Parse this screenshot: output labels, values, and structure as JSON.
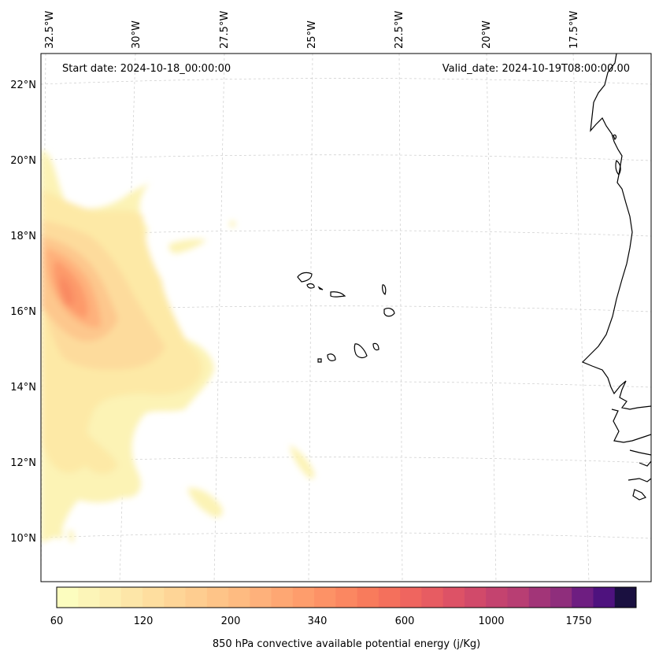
{
  "map": {
    "start_date_label": "Start date: 2024-10-18_00:00:00",
    "valid_date_label": "Valid_date: 2024-10-19T08:00:00.00",
    "lon_labels": [
      "32.5°W",
      "30°W",
      "27.5°W",
      "25°W",
      "22.5°W",
      "20°W",
      "17.5°W"
    ],
    "lat_labels": [
      "22°N",
      "20°N",
      "18°N",
      "16°N",
      "14°N",
      "12°N",
      "10°N"
    ],
    "grid": true,
    "features": [
      "Cape Verde islands",
      "West African coastline"
    ]
  },
  "colorbar": {
    "title": "850 hPa convective available potential energy (j/Kg)",
    "tick_labels": [
      "60",
      "120",
      "200",
      "340",
      "600",
      "1000",
      "1750"
    ],
    "levels": 21,
    "colors": [
      "#fcfdbf",
      "#fcf5b8",
      "#fdeeb0",
      "#fde6a8",
      "#fede9f",
      "#fed597",
      "#fecd90",
      "#fec488",
      "#febb81",
      "#feb17b",
      "#fea773",
      "#fe9d6c",
      "#fd9266",
      "#fb8761",
      "#f87b5c",
      "#f4705c",
      "#ef655f",
      "#e75c62",
      "#dd5266",
      "#d14a6a",
      "#c4436f"
    ],
    "extra_colors": [
      "#b83e73",
      "#a23578",
      "#8f2e7c",
      "#6e1e81",
      "#4e127e",
      "#1a1040"
    ]
  }
}
